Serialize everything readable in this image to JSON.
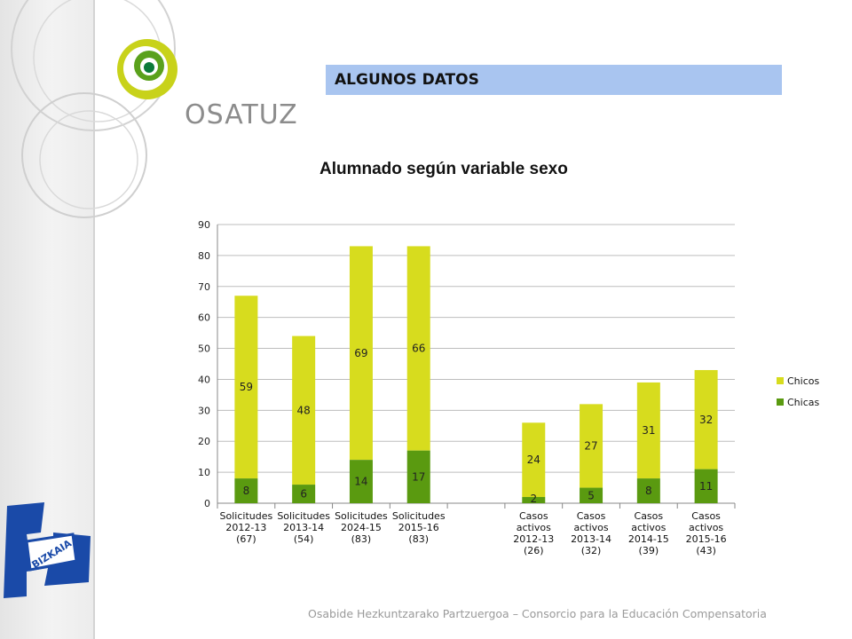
{
  "header": {
    "title": "ALGUNOS DATOS"
  },
  "logo": {
    "text": "OSATUZ"
  },
  "bizkaia": {
    "text": "BIZKAIA"
  },
  "footer": {
    "text": "Osabide Hezkuntzarako Partzuergoa – Consorcio para la Educación Compensatoria"
  },
  "colors": {
    "chicos": "#d7dc1e",
    "chicas": "#5a9a10",
    "header_bg": "#a9c5f0"
  },
  "chart_data": {
    "type": "bar",
    "stacked": true,
    "title": "Alumnado según variable sexo",
    "xlabel": "",
    "ylabel": "",
    "ylim": [
      0,
      90
    ],
    "yticks": [
      0,
      10,
      20,
      30,
      40,
      50,
      60,
      70,
      80,
      90
    ],
    "grid": true,
    "legend_position": "right",
    "categories": [
      [
        "Solicitudes",
        "2012-13",
        "(67)"
      ],
      [
        "Solicitudes",
        "2013-14",
        "(54)"
      ],
      [
        "Solicitudes",
        "2024-15",
        "(83)"
      ],
      [
        "Solicitudes",
        "2015-16",
        "(83)"
      ],
      [],
      [
        "Casos",
        "activos",
        "2012-13",
        "(26)"
      ],
      [
        "Casos",
        "activos",
        "2013-14",
        "(32)"
      ],
      [
        "Casos",
        "activos",
        "2014-15",
        "(39)"
      ],
      [
        "Casos",
        "activos",
        "2015-16",
        "(43)"
      ]
    ],
    "series": [
      {
        "name": "Chicas",
        "color": "#5a9a10",
        "values": [
          8,
          6,
          14,
          17,
          null,
          2,
          5,
          8,
          11
        ]
      },
      {
        "name": "Chicos",
        "color": "#d7dc1e",
        "values": [
          59,
          48,
          69,
          66,
          null,
          24,
          27,
          31,
          32
        ]
      }
    ]
  }
}
